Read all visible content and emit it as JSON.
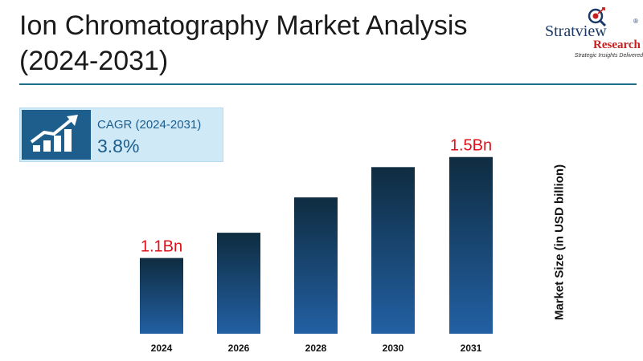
{
  "header": {
    "title_line1": "Ion Chromatography Market Analysis",
    "title_line2": "(2024-2031)"
  },
  "logo": {
    "name": "Stratview",
    "name_mark": "®",
    "sub": "Research",
    "tagline": "Strategic Insights Delivered"
  },
  "cagr": {
    "label": "CAGR (2024-2031)",
    "value": "3.8%",
    "icon": "growth-chart-icon"
  },
  "colors": {
    "bar_top": "#0f2c40",
    "bar_bottom": "#2260a3",
    "value_label": "#e0101a",
    "rule": "#1f6f8b"
  },
  "chart_data": {
    "type": "bar",
    "categories": [
      "2024",
      "2026",
      "2028",
      "2030",
      "2031"
    ],
    "values": [
      1.1,
      1.2,
      1.34,
      1.46,
      1.5
    ],
    "data_labels": [
      "1.1Bn",
      "",
      "",
      "",
      "1.5Bn"
    ],
    "xlabel": "",
    "ylabel": "Market Size (in USD billion)",
    "ylim": [
      0.8,
      1.55
    ],
    "grid": false,
    "legend": "none"
  }
}
